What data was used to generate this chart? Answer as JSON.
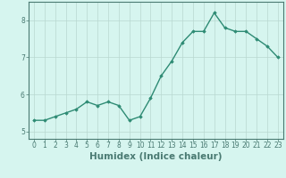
{
  "x": [
    0,
    1,
    2,
    3,
    4,
    5,
    6,
    7,
    8,
    9,
    10,
    11,
    12,
    13,
    14,
    15,
    16,
    17,
    18,
    19,
    20,
    21,
    22,
    23
  ],
  "y": [
    5.3,
    5.3,
    5.4,
    5.5,
    5.6,
    5.8,
    5.7,
    5.8,
    5.7,
    5.3,
    5.4,
    5.9,
    6.5,
    6.9,
    7.4,
    7.7,
    7.7,
    8.2,
    7.8,
    7.7,
    7.7,
    7.5,
    7.3,
    7.0
  ],
  "xlabel": "Humidex (Indice chaleur)",
  "xlim": [
    -0.5,
    23.5
  ],
  "ylim": [
    4.8,
    8.5
  ],
  "yticks": [
    5,
    6,
    7,
    8
  ],
  "xticks": [
    0,
    1,
    2,
    3,
    4,
    5,
    6,
    7,
    8,
    9,
    10,
    11,
    12,
    13,
    14,
    15,
    16,
    17,
    18,
    19,
    20,
    21,
    22,
    23
  ],
  "line_color": "#2e8b74",
  "marker": "D",
  "markersize": 1.8,
  "linewidth": 1.0,
  "bg_color": "#d6f5ef",
  "grid_color": "#b8d8d0",
  "tick_label_fontsize": 5.5,
  "xlabel_fontsize": 7.5,
  "spine_color": "#4a7a72"
}
